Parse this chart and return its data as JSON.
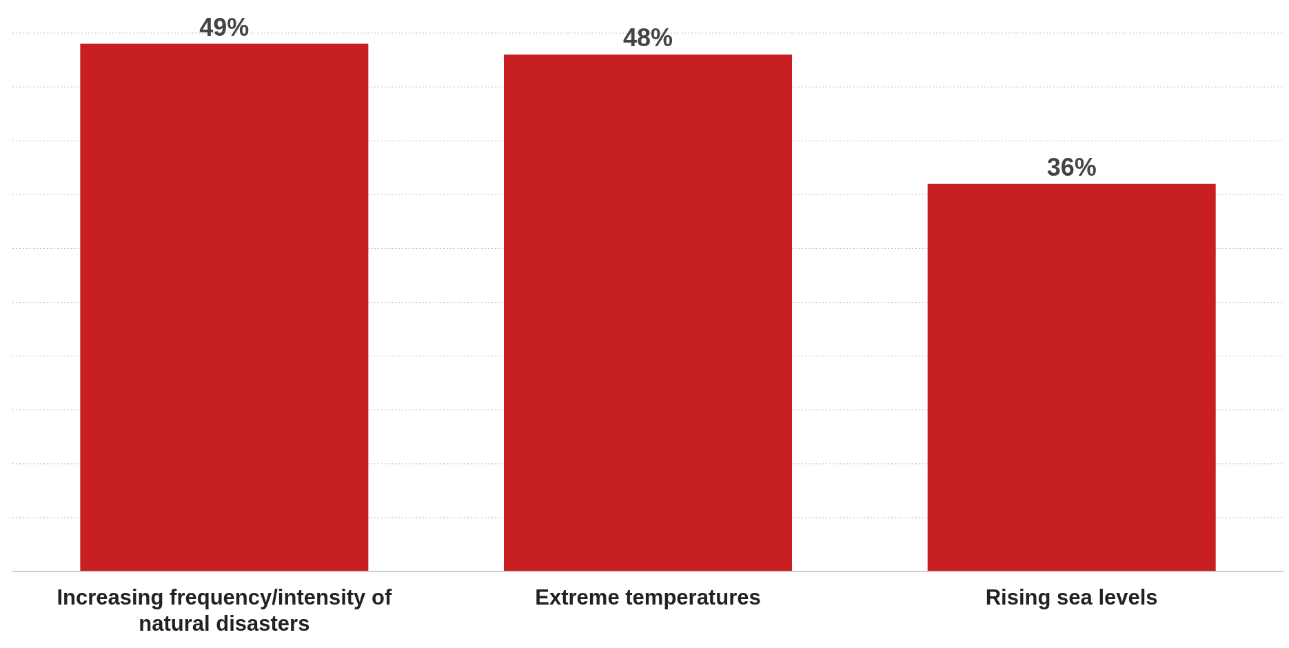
{
  "chart_data": {
    "type": "bar",
    "categories": [
      "Increasing frequency/intensity of natural disasters",
      "Extreme temperatures",
      "Rising sea levels"
    ],
    "values": [
      49,
      48,
      36
    ],
    "color": "#c82022",
    "value_labels": [
      "49%",
      "48%",
      "36%"
    ],
    "ylim": [
      0,
      50
    ],
    "yticks": [
      {
        "value": 0,
        "label": null
      },
      {
        "value": 5,
        "label": null
      },
      {
        "value": 10,
        "label": null
      },
      {
        "value": 15,
        "label": null
      },
      {
        "value": 20,
        "label": null
      },
      {
        "value": 25,
        "label": null
      },
      {
        "value": 30,
        "label": null
      },
      {
        "value": 35,
        "label": null
      },
      {
        "value": 40,
        "label": null
      },
      {
        "value": 45,
        "label": null
      },
      {
        "value": 50,
        "label": null
      }
    ],
    "grid": "y"
  }
}
